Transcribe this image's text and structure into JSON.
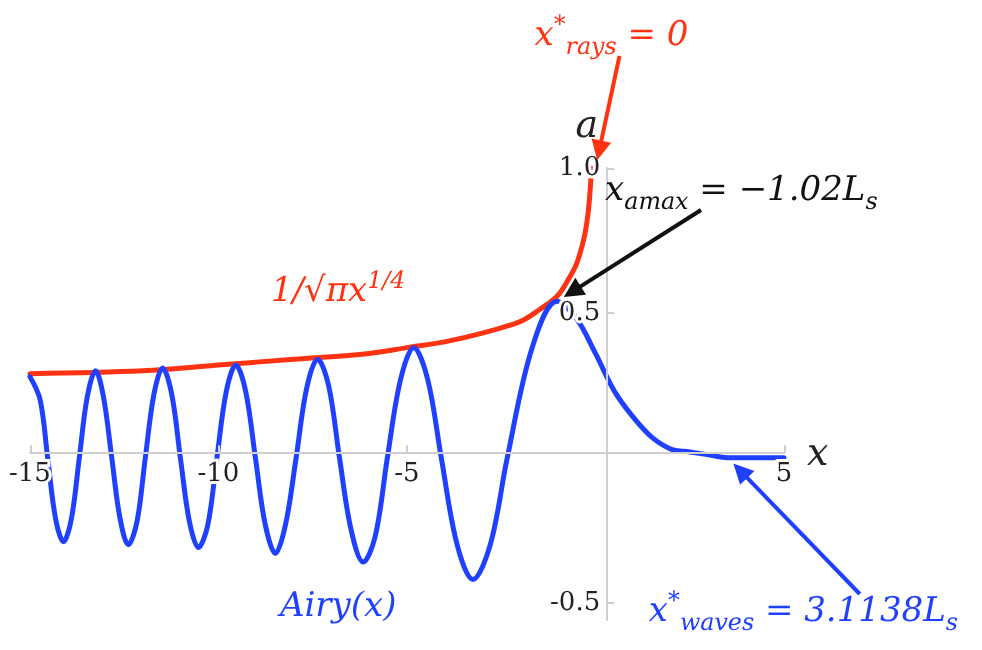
{
  "chart_data": {
    "type": "line",
    "xlabel": "x",
    "ylabel": "a",
    "xlim": [
      -15,
      5
    ],
    "ylim": [
      -0.56,
      1.0
    ],
    "xticks": [
      -15,
      -10,
      -5,
      5
    ],
    "yticks": [
      -0.5,
      0.5,
      {
        "value": 1.0,
        "label": "1.0"
      }
    ],
    "grid": false,
    "legend": false,
    "marker": "none",
    "line_style": "solid",
    "series": [
      {
        "name": "1/√πx$^{1/4}$",
        "color": "#ff3311",
        "x": [
          -15,
          -12,
          -10,
          -8,
          -6,
          -5,
          -4,
          -3,
          -2,
          -1.5,
          -1,
          -0.7,
          -0.5,
          -0.3,
          -0.2,
          -0.15,
          -0.1
        ],
        "values": [
          0.29,
          0.3,
          0.32,
          0.34,
          0.36,
          0.38,
          0.4,
          0.43,
          0.47,
          0.51,
          0.56,
          0.62,
          0.67,
          0.76,
          0.84,
          0.91,
          1.0
        ]
      },
      {
        "name": "Airy(x)",
        "color": "#2040ff",
        "x": [
          -15,
          -14.73,
          -14.53,
          -14.32,
          -14.11,
          -13.9,
          -13.69,
          -13.48,
          -13.26,
          -13.05,
          -12.83,
          -12.61,
          -12.39,
          -12.16,
          -11.94,
          -11.71,
          -11.48,
          -11.24,
          -11.01,
          -10.77,
          -10.53,
          -10.28,
          -10.04,
          -9.79,
          -9.54,
          -9.28,
          -9.02,
          -8.76,
          -8.49,
          -8.22,
          -7.94,
          -7.66,
          -7.37,
          -7.08,
          -6.79,
          -6.48,
          -6.16,
          -5.84,
          -5.52,
          -5.17,
          -4.82,
          -4.45,
          -4.09,
          -3.67,
          -3.25,
          -2.79,
          -2.34,
          -1.68,
          -1.02,
          -0.5,
          0,
          0.5,
          1,
          1.5,
          2,
          2.5,
          3,
          3.5,
          4,
          5
        ],
        "values": [
          0.28,
          0.2,
          0,
          -0.21,
          -0.29,
          -0.21,
          0,
          0.21,
          0.3,
          0.21,
          0,
          -0.21,
          -0.3,
          -0.22,
          0,
          0.22,
          0.31,
          0.22,
          0,
          -0.22,
          -0.31,
          -0.23,
          0,
          0.23,
          0.32,
          0.23,
          0,
          -0.23,
          -0.33,
          -0.23,
          0,
          0.24,
          0.34,
          0.25,
          0,
          -0.25,
          -0.36,
          -0.27,
          0,
          0.27,
          0.38,
          0.27,
          0,
          -0.3,
          -0.42,
          -0.3,
          0,
          0.38,
          0.54,
          0.48,
          0.36,
          0.23,
          0.14,
          0.07,
          0.03,
          0.02,
          0.01,
          0,
          0,
          0
        ]
      }
    ],
    "annotations": [
      "x$^{*}$$_{rays}$ = 0",
      {
        "text": "x$_{a}$$_{max}$ = −1.02L$_{s}$",
        "x": -1.02,
        "y": 0.54
      },
      "x$^{*}$$_{waves}$ = 3.1138L$_{s}$"
    ]
  }
}
